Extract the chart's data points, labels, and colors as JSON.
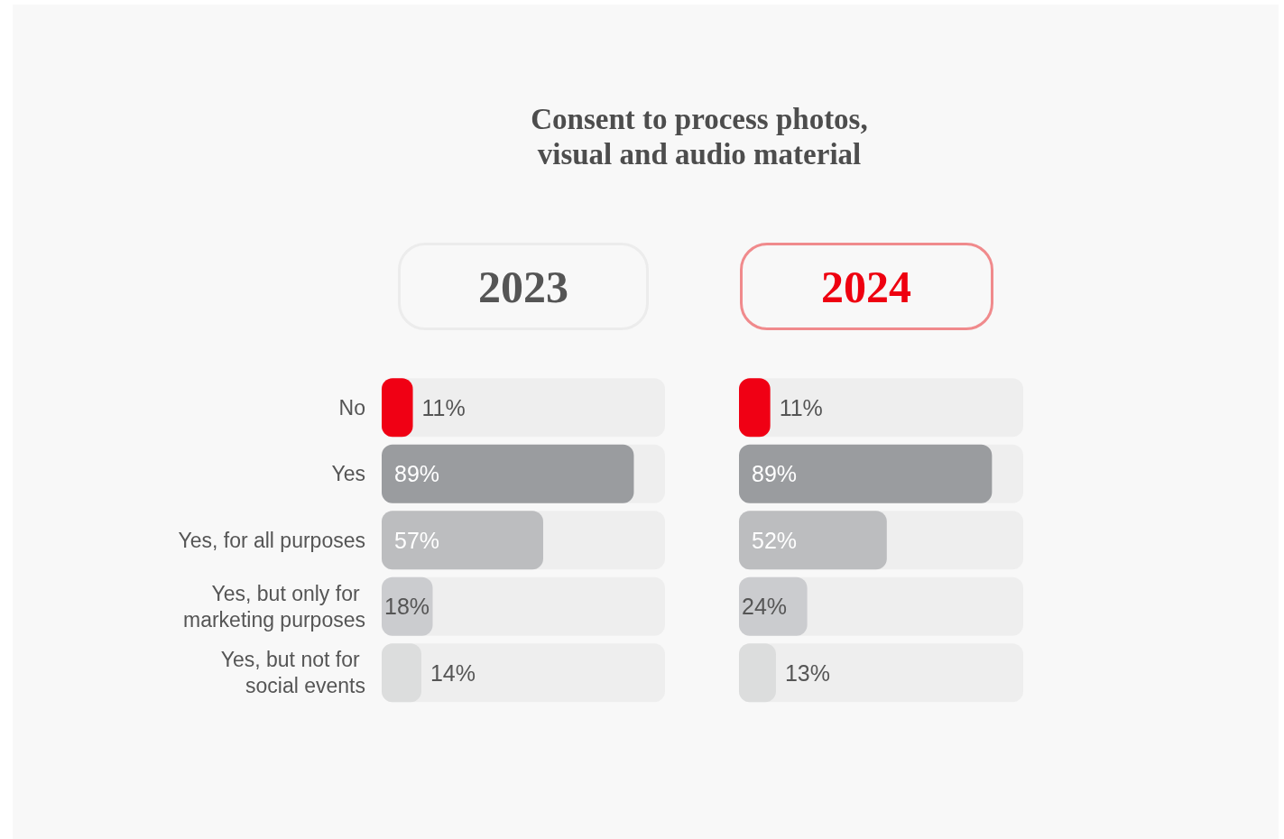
{
  "chart_data": [
    {
      "type": "bar",
      "orientation": "horizontal",
      "title": "Consent to process photos, visual and audio material",
      "subtitle": "2023",
      "categories": [
        "No",
        "Yes",
        "Yes, for all purposes",
        "Yes, but only for marketing purposes",
        "Yes, but not for social events"
      ],
      "values": [
        11,
        89,
        57,
        18,
        14
      ],
      "value_labels": [
        "11%",
        "89%",
        "57%",
        "18%",
        "14%"
      ],
      "colors": [
        "#f00014",
        "#9a9c9f",
        "#bcbdbf",
        "#cbcccf",
        "#dcdddd"
      ],
      "xlim": [
        0,
        100
      ],
      "tick_labels": "y"
    },
    {
      "type": "bar",
      "orientation": "horizontal",
      "subtitle": "2024",
      "categories": [
        "No",
        "Yes",
        "Yes, for all purposes",
        "Yes, but only for marketing purposes",
        "Yes, but not for social events"
      ],
      "values": [
        11,
        89,
        52,
        24,
        13
      ],
      "value_labels": [
        "11%",
        "89%",
        "52%",
        "24%",
        "13%"
      ],
      "colors": [
        "#f00014",
        "#9a9c9f",
        "#bcbdbf",
        "#cbcccf",
        "#dcdddd"
      ],
      "xlim": [
        0,
        100
      ],
      "tick_labels": false
    }
  ]
}
